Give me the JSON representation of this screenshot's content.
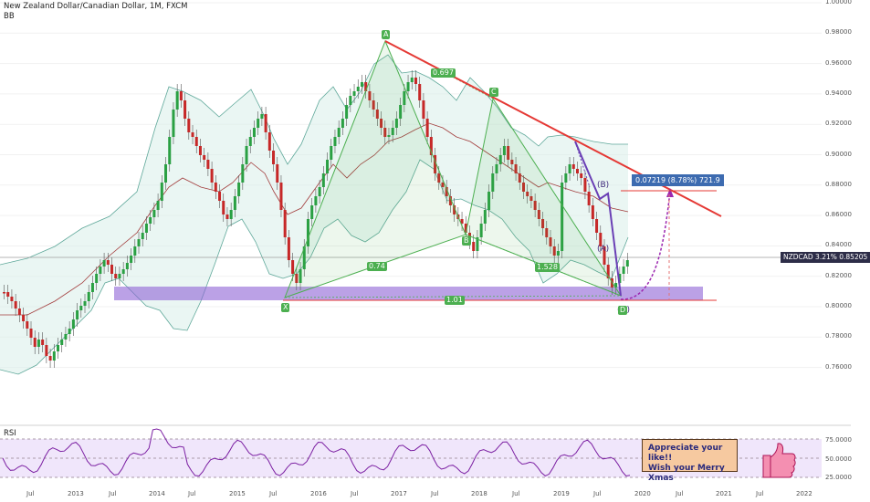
{
  "legend": {
    "symbol_line": "New Zealand Dollar/Canadian Dollar, 1M, FXCM",
    "indicator": "BB"
  },
  "price_axis": {
    "labels": [
      "1.00000",
      "0.98000",
      "0.96000",
      "0.94000",
      "0.92000",
      "0.90000",
      "0.88000",
      "0.86000",
      "0.84000",
      "0.82000",
      "0.80000",
      "0.78000",
      "0.76000"
    ]
  },
  "price_tag": "NZDCAD  3.21%  0.85205",
  "measure_label": "0.07219 (8.78%) 721.9",
  "rsi": {
    "title": "RSI",
    "levels": [
      "75.0000",
      "50.0000",
      "25.0000"
    ]
  },
  "time_axis": [
    "Jul",
    "2013",
    "Jul",
    "2014",
    "Jul",
    "2015",
    "Jul",
    "2016",
    "Jul",
    "2017",
    "Jul",
    "2018",
    "Jul",
    "2019",
    "Jul",
    "2020",
    "Jul",
    "2021",
    "Jul",
    "2022"
  ],
  "pattern_points": {
    "X": "X",
    "A": "A",
    "B": "B",
    "C": "C",
    "D": "D"
  },
  "ratios": {
    "xb": "0.74",
    "ac": "0.697",
    "bd": "1.528",
    "xd": "1.01"
  },
  "abcd_labels": {
    "b": "(B)",
    "a": "(A)",
    "d": "(D)"
  },
  "note": {
    "line1": "Appreciate your like!!",
    "line2": "Wish your Merry Xmas"
  },
  "colors": {
    "bull": "#2aa043",
    "bear": "#c62828",
    "pattern": "#4caf50",
    "zone": "#8e63d6",
    "trend": "#e53935"
  }
}
